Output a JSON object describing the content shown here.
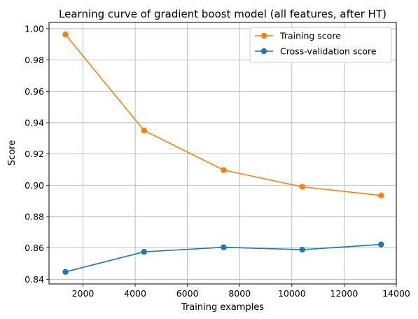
{
  "chart_data": {
    "type": "line",
    "title": "Learning curve of gradient boost model (all features, after HT)",
    "xlabel": "Training examples",
    "ylabel": "Score",
    "xlim": [
      700,
      14000
    ],
    "ylim": [
      0.837,
      1.004
    ],
    "xticks": [
      2000,
      4000,
      6000,
      8000,
      10000,
      12000,
      14000
    ],
    "yticks": [
      0.84,
      0.86,
      0.88,
      0.9,
      0.92,
      0.94,
      0.96,
      0.98,
      1.0
    ],
    "xtick_labels": [
      "2000",
      "4000",
      "6000",
      "8000",
      "10000",
      "12000",
      "14000"
    ],
    "ytick_labels": [
      "0.84",
      "0.86",
      "0.88",
      "0.90",
      "0.92",
      "0.94",
      "0.96",
      "0.98",
      "1.00"
    ],
    "grid": true,
    "legend_position": "top-right",
    "x": [
      1330,
      4340,
      7390,
      10400,
      13420
    ],
    "series": [
      {
        "name": "Training score",
        "color": "#ff7f0e",
        "values": [
          0.9963,
          0.935,
          0.9097,
          0.899,
          0.8935
        ]
      },
      {
        "name": "Cross-validation score",
        "color": "#1f77b4",
        "values": [
          0.8447,
          0.8575,
          0.8604,
          0.8589,
          0.8622
        ]
      }
    ]
  }
}
